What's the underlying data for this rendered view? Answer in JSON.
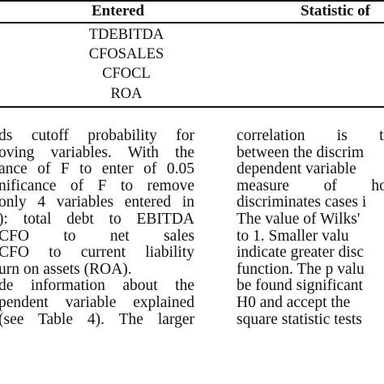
{
  "table": {
    "headers": {
      "entered": "Entered",
      "statistic": "Statistic of"
    },
    "variables": [
      "TDEBITDA",
      "CFOSALES",
      "CFOCL",
      "ROA"
    ]
  },
  "body": {
    "left_lines": [
      "ds cutoff probability for",
      "oving variables. With the",
      "ance of F to enter of 0.05",
      "nificance of F to remove",
      "only 4 variables entered in",
      "): total debt to EBITDA",
      "CFO to net sales",
      "CFO to current liability",
      "urn on assets (ROA).",
      "de information about the",
      "pendent variable explained",
      "(see Table 4). The larger"
    ],
    "right_lines": [
      "correlation is the",
      "between the discrim",
      "dependent variable",
      "measure of how",
      "discriminates cases i",
      "The value of Wilks'",
      "to 1. Smaller valu",
      "indicate greater disc",
      "function. The p valu",
      "be found significant",
      "H0 and accept the",
      "square statistic tests"
    ]
  }
}
